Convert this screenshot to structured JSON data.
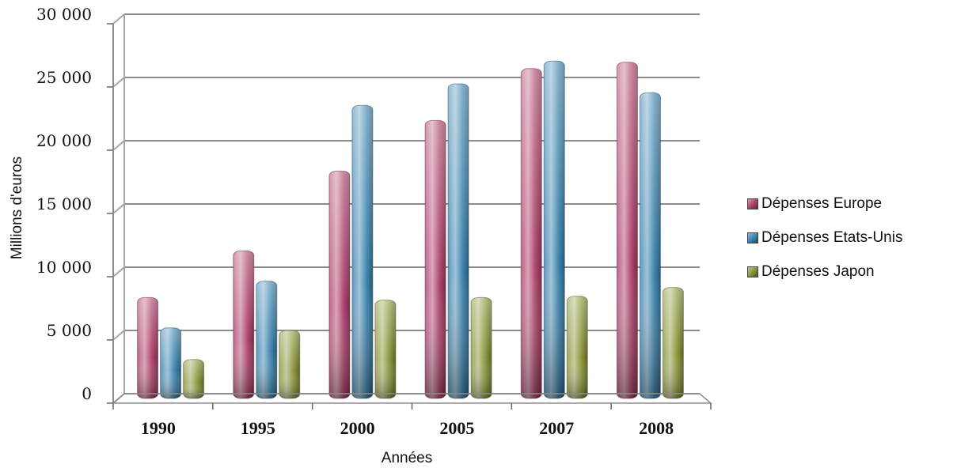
{
  "chart_data": {
    "type": "bar",
    "categories": [
      "1990",
      "1995",
      "2000",
      "2005",
      "2007",
      "2008"
    ],
    "series": [
      {
        "name": "Dépenses Europe",
        "values": [
          7600,
          11300,
          17600,
          21600,
          25700,
          26200
        ],
        "color": "#b0446f"
      },
      {
        "name": "Dépenses Etats-Unis",
        "values": [
          5200,
          8900,
          22800,
          24500,
          26300,
          23800
        ],
        "color": "#3e86b0"
      },
      {
        "name": "Dépenses Japon",
        "values": [
          2700,
          5000,
          7400,
          7600,
          7700,
          8400
        ],
        "color": "#8c963a"
      }
    ],
    "title": "",
    "xlabel": "Années",
    "ylabel": "Millions d'euros",
    "ylim": [
      0,
      30000
    ],
    "yticks": [
      "0",
      "5 000",
      "10 000",
      "15 000",
      "20 000",
      "25 000",
      "30 000"
    ],
    "grid": true,
    "legend": "right"
  }
}
